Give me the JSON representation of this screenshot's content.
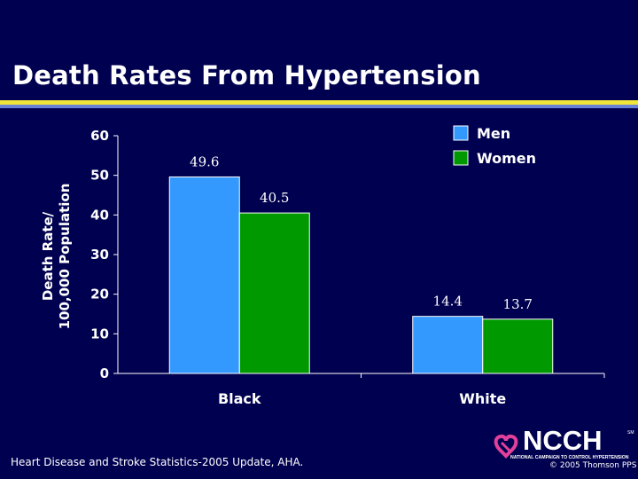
{
  "slide": {
    "title": "Death Rates From Hypertension",
    "source": "Heart Disease and Stroke Statistics-2005 Update, AHA.",
    "copyright": "© 2005 Thomson PPS",
    "logo": {
      "main": "NCCH",
      "sm": "SM",
      "tagline": "NATIONAL CAMPAIGN TO CONTROL HYPERTENSION"
    },
    "ylabel_lines": [
      "Death Rate/",
      "100,000 Population"
    ]
  },
  "colors": {
    "background": "#000050",
    "men": "#3399ff",
    "women": "#009900",
    "stripe_yellow": "#f2e53a",
    "stripe_blue": "#6a82d6"
  },
  "chart_data": {
    "type": "bar",
    "title": "Death Rates From Hypertension",
    "categories": [
      "Black",
      "White"
    ],
    "series": [
      {
        "name": "Men",
        "values": [
          49.6,
          14.4
        ],
        "labels": [
          "49.6",
          "14.4"
        ]
      },
      {
        "name": "Women",
        "values": [
          40.5,
          13.7
        ],
        "labels": [
          "40.5",
          "13.7"
        ]
      }
    ],
    "ylabel": "Death Rate/ 100,000 Population",
    "xlabel": "",
    "ylim": [
      0,
      60
    ],
    "yticks": [
      0,
      10,
      20,
      30,
      40,
      50,
      60
    ],
    "grid": false,
    "legend": "top-right"
  }
}
